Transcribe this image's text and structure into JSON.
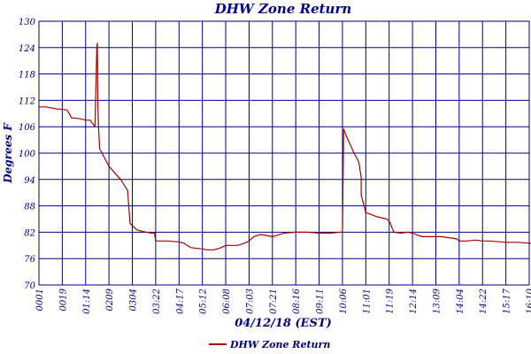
{
  "chart_data": {
    "type": "line",
    "title": "DHW Zone Return",
    "xlabel": "04/12/18 (EST)",
    "ylabel": "Degrees F",
    "ylim": [
      70,
      130
    ],
    "yticks": [
      70,
      76,
      82,
      88,
      94,
      100,
      106,
      112,
      118,
      124,
      130
    ],
    "xticks": [
      "0001",
      "0019",
      "01:14",
      "0209",
      "0304",
      "03:22",
      "04:17",
      "05:12",
      "06:08",
      "07:03",
      "07:21",
      "08:16",
      "09:11",
      "10:06",
      "11:01",
      "11:19",
      "12:14",
      "13:09",
      "14:04",
      "14:22",
      "15:17",
      "16:10"
    ],
    "grid": true,
    "legend": "bottom-center",
    "colors": {
      "series": "#aa0000",
      "axis": "#000080"
    },
    "series": [
      {
        "name": "DHW Zone Return",
        "x": [
          0,
          0.3,
          0.8,
          1.0,
          1.2,
          1.3,
          1.4,
          1.5,
          1.8,
          2.0,
          2.2,
          2.4,
          2.48,
          2.5,
          2.52,
          2.55,
          2.6,
          3.0,
          3.5,
          3.8,
          3.9,
          4.0,
          4.2,
          4.6,
          4.8,
          4.95,
          5.0,
          5.5,
          6.0,
          6.2,
          6.5,
          7.0,
          7.2,
          7.5,
          7.8,
          8.0,
          8.2,
          8.5,
          8.8,
          9.0,
          9.2,
          9.5,
          10.0,
          10.5,
          11.0,
          11.5,
          12.0,
          12.5,
          12.9,
          13.0,
          13.05,
          13.2,
          13.5,
          13.7,
          13.8,
          13.8,
          14.0,
          14.5,
          14.9,
          15.0,
          15.05,
          15.2,
          15.5,
          15.8,
          16.0,
          16.4,
          16.9,
          17.2,
          17.5,
          17.9,
          18.0,
          18.3,
          18.7,
          19.0,
          19.3,
          19.8,
          20.0,
          20.5,
          21.0,
          21.5,
          22.0
        ],
        "y": [
          110.5,
          110.5,
          110.0,
          110.0,
          109.8,
          109.0,
          108.0,
          108.0,
          107.8,
          107.5,
          107.5,
          106.0,
          124.0,
          125.0,
          112.0,
          106.0,
          101.0,
          97.0,
          94.0,
          91.5,
          84.0,
          83.5,
          82.5,
          82.0,
          81.8,
          81.8,
          80.0,
          80.0,
          79.8,
          79.5,
          78.5,
          78.2,
          78.0,
          78.0,
          78.5,
          79.0,
          79.0,
          79.0,
          79.5,
          80.0,
          81.0,
          81.5,
          81.0,
          81.8,
          82.0,
          82.0,
          81.8,
          81.8,
          82.0,
          82.0,
          105.5,
          103.5,
          100.0,
          98.0,
          94.5,
          90.5,
          86.5,
          85.5,
          85.0,
          84.5,
          84.0,
          82.0,
          81.8,
          82.0,
          81.8,
          81.0,
          81.0,
          81.0,
          80.8,
          80.5,
          80.0,
          80.0,
          80.2,
          80.0,
          80.0,
          79.8,
          79.7,
          79.7,
          79.5,
          79.5,
          79.3
        ]
      }
    ]
  }
}
